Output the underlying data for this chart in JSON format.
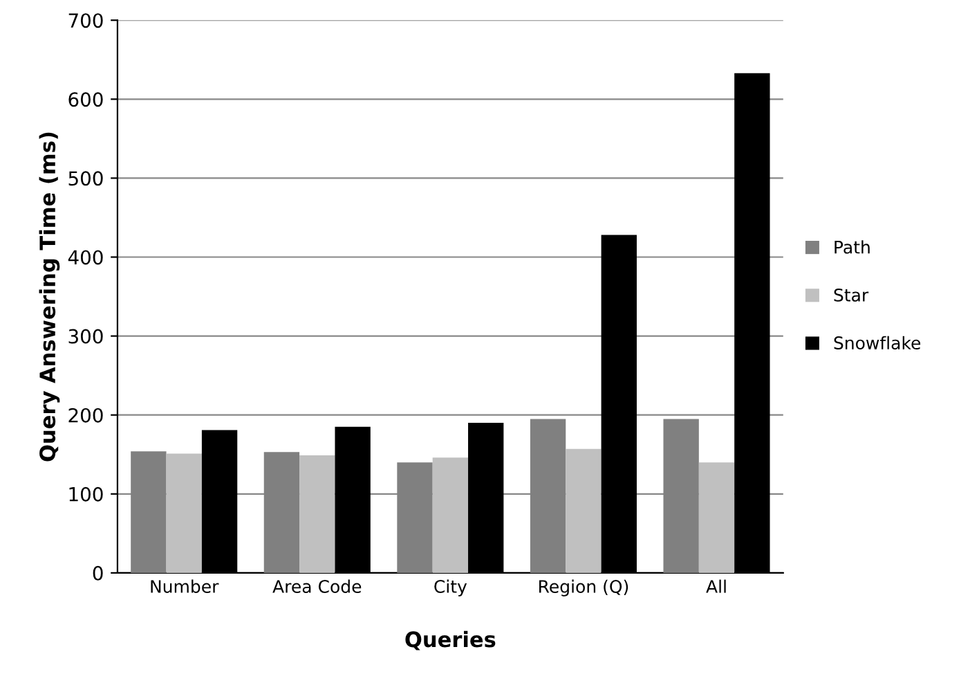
{
  "chart_data": {
    "type": "bar",
    "xlabel": "Queries",
    "ylabel": "Query Answering Time (ms)",
    "categories": [
      "Number",
      "Area Code",
      "City",
      "Region (Q)",
      "All"
    ],
    "series": [
      {
        "name": "Path",
        "color": "#808080",
        "values": [
          154,
          153,
          140,
          195,
          195
        ]
      },
      {
        "name": "Star",
        "color": "#c0c0c0",
        "values": [
          151,
          149,
          146,
          157,
          140
        ]
      },
      {
        "name": "Snowflake",
        "color": "#000000",
        "values": [
          181,
          185,
          190,
          428,
          633
        ]
      }
    ],
    "ylim": [
      0,
      700
    ],
    "yticks": [
      0,
      100,
      200,
      300,
      400,
      500,
      600,
      700
    ],
    "grid": "y",
    "legend": "right"
  }
}
